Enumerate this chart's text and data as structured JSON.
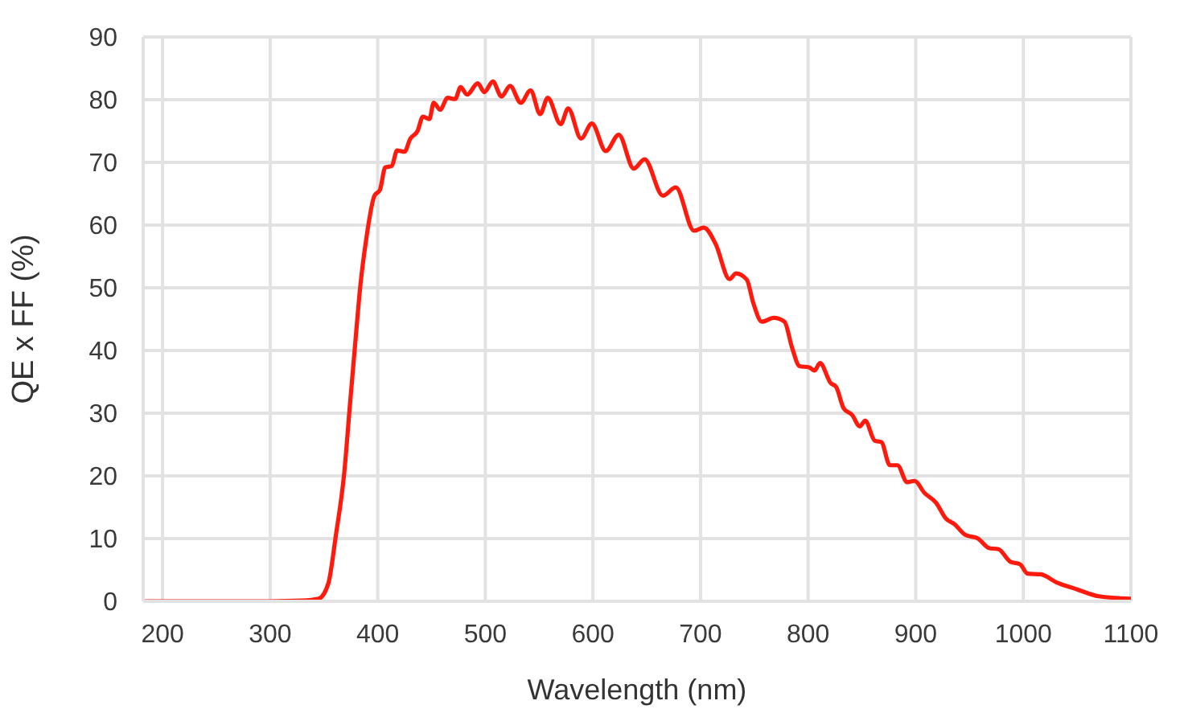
{
  "chart_data": {
    "type": "line",
    "xlabel": "Wavelength (nm)",
    "ylabel": "QE x FF (%)",
    "xlim": [
      182,
      1100
    ],
    "xticks": [
      200,
      300,
      400,
      500,
      600,
      700,
      800,
      900,
      1000,
      1100
    ],
    "ylim": [
      0,
      90
    ],
    "yticks": [
      0,
      10,
      20,
      30,
      40,
      50,
      60,
      70,
      80,
      90
    ],
    "grid": true,
    "legend": false,
    "marker": "none",
    "line_style": "solid",
    "series": [
      {
        "color": "#ff1a0e",
        "x": [
          182,
          250,
          300,
          330,
          345,
          354,
          361,
          369,
          374,
          379,
          384,
          389,
          397,
          402,
          407,
          413,
          418,
          425,
          430,
          437,
          442,
          448,
          452,
          458,
          465,
          472,
          477,
          483,
          493,
          499,
          507,
          515,
          523,
          533,
          542,
          551,
          558,
          570,
          577,
          589,
          599,
          612,
          624,
          638,
          648,
          665,
          677,
          694,
          703,
          714,
          727,
          733,
          743,
          749,
          757,
          768,
          778,
          785,
          792,
          801,
          806,
          811,
          821,
          826,
          833,
          841,
          848,
          853,
          862,
          868,
          876,
          883,
          892,
          899,
          908,
          919,
          928,
          936,
          946,
          958,
          968,
          977,
          988,
          997,
          1004,
          1016,
          1031,
          1050,
          1070,
          1100
        ],
        "values": [
          0,
          0,
          0,
          0.1,
          0.4,
          2.8,
          10.4,
          20.7,
          31,
          41,
          50.6,
          57.4,
          64.7,
          65.6,
          69.2,
          69.4,
          71.9,
          71.7,
          73.7,
          75,
          77.3,
          76.9,
          79.5,
          78.4,
          80.3,
          80.1,
          82,
          80.8,
          82.6,
          81.2,
          82.9,
          80.5,
          82.2,
          79.5,
          81.5,
          77.7,
          80.3,
          76.1,
          78.6,
          73.8,
          76.2,
          71.8,
          74.4,
          69,
          70.5,
          64.7,
          66,
          59.1,
          59.6,
          57,
          51.4,
          52.3,
          51.3,
          47.6,
          44.6,
          45.2,
          44.6,
          40.5,
          37.5,
          37.3,
          36.8,
          38,
          34.8,
          34.2,
          30.8,
          29.7,
          27.9,
          28.8,
          25.6,
          25.4,
          21.7,
          21.7,
          19,
          19.2,
          17.3,
          15.7,
          13.2,
          12.3,
          10.6,
          10,
          8.5,
          8.3,
          6.3,
          5.9,
          4.4,
          4.3,
          3,
          1.9,
          0.8,
          0.4
        ]
      }
    ]
  }
}
